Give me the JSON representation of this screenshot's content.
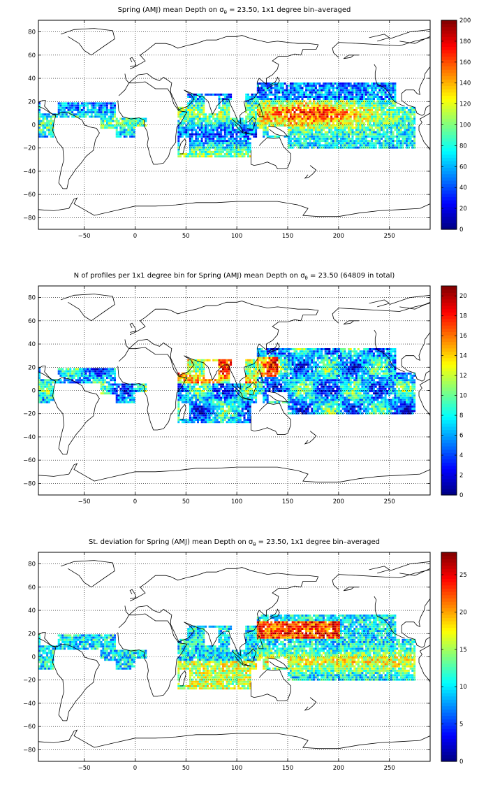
{
  "panels": [
    {
      "title_pre": "Spring (AMJ) mean Depth on ",
      "title_sigma": "σ",
      "title_theta": "θ",
      "title_post": " = 23.50, 1x1 degree bin–averaged",
      "colorbar": {
        "min": 0,
        "max": 200,
        "ticks": [
          0,
          20,
          40,
          60,
          80,
          100,
          120,
          140,
          160,
          180,
          200
        ]
      }
    },
    {
      "title_pre": "N of profiles per 1x1 degree bin for Spring (AMJ) mean Depth on ",
      "title_sigma": "σ",
      "title_theta": "θ",
      "title_post": " = 23.50 (64809 in total)",
      "colorbar": {
        "min": 0,
        "max": 21,
        "ticks": [
          0,
          2,
          4,
          6,
          8,
          10,
          12,
          14,
          16,
          18,
          20
        ]
      }
    },
    {
      "title_pre": "St. deviation for Spring (AMJ) mean Depth on ",
      "title_sigma": "σ",
      "title_theta": "θ",
      "title_post": " = 23.50, 1x1 degree bin–averaged",
      "colorbar": {
        "min": 0,
        "max": 28,
        "ticks": [
          0,
          5,
          10,
          15,
          20,
          25
        ]
      }
    }
  ],
  "map_axes": {
    "x_ticks": [
      -50,
      0,
      50,
      100,
      150,
      200,
      250
    ],
    "y_ticks": [
      -80,
      -60,
      -40,
      -20,
      0,
      20,
      40,
      60,
      80
    ],
    "xlim": [
      -95,
      290
    ],
    "ylim": [
      -90,
      90
    ],
    "grid": true,
    "grid_style": "dotted"
  },
  "colormap": "jet"
}
